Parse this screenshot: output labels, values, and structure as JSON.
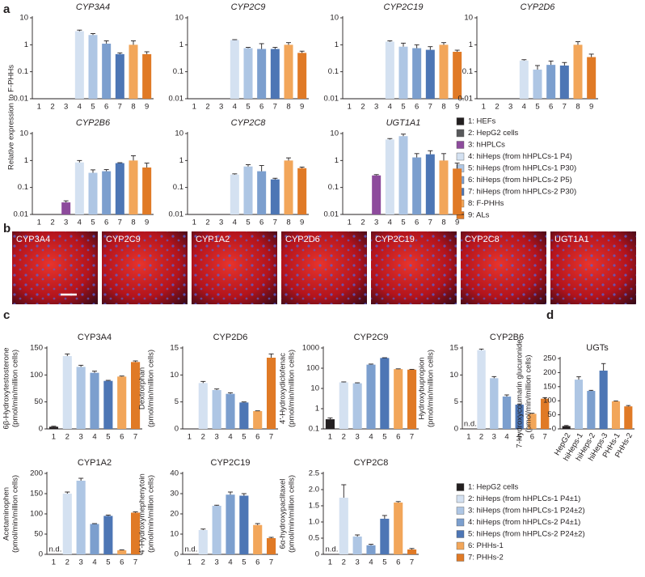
{
  "panel_labels": [
    "a",
    "b",
    "c",
    "d"
  ],
  "shared_ylabel": "Relative expression to F-PHHs",
  "images": [
    "CYP3A4",
    "CYP2C9",
    "CYP1A2",
    "CYP2D6",
    "CYP2C19",
    "CYP2C8",
    "UGT1A1"
  ],
  "legends": [
    {
      "entries": [
        {
          "label": "1: HEFs",
          "color": "#231f20"
        },
        {
          "label": "2: HepG2 cells",
          "color": "#58595b"
        },
        {
          "label": "3: hHPLCs",
          "color": "#8d4b9c"
        },
        {
          "label": "4: hiHeps (from hHPLCs-1 P4)",
          "color": "#d4e1f1"
        },
        {
          "label": "5: hiHeps (from hHPLCs-1 P30)",
          "color": "#aec6e4"
        },
        {
          "label": "6: hiHeps (from hHPLCs-2 P5)",
          "color": "#7c9fce"
        },
        {
          "label": "7: hiHeps (from hHPLCs-2 P30)",
          "color": "#4d76b5"
        },
        {
          "label": "8: F-PHHs",
          "color": "#f2a65a"
        },
        {
          "label": "9: ALs",
          "color": "#e07a26"
        }
      ]
    },
    {
      "entries": [
        {
          "label": "1: HepG2 cells",
          "color": "#231f20"
        },
        {
          "label": "2: hiHeps (from hHPLCs-1 P4±1)",
          "color": "#d4e1f1"
        },
        {
          "label": "3: hiHeps (from hHPLCs-1 P24±2)",
          "color": "#aec6e4"
        },
        {
          "label": "4: hiHeps (from hHPLCs-2 P4±1)",
          "color": "#7c9fce"
        },
        {
          "label": "5: hiHeps (from hHPLCs-2 P24±2)",
          "color": "#4d76b5"
        },
        {
          "label": "6: PHHs-1",
          "color": "#f2a65a"
        },
        {
          "label": "7: PHHs-2",
          "color": "#e07a26"
        }
      ]
    }
  ],
  "chart_data": [
    {
      "type": "bar",
      "title": "CYP3A4",
      "italic_title": true,
      "log_scale": true,
      "ylim": [
        0.01,
        10
      ],
      "yticks": [
        0.01,
        0.1,
        1,
        10
      ],
      "categories": [
        "1",
        "2",
        "3",
        "4",
        "5",
        "6",
        "7",
        "8",
        "9"
      ],
      "values": [
        null,
        null,
        null,
        3.2,
        2.3,
        1.1,
        0.45,
        1.0,
        0.45
      ],
      "errors": [
        null,
        null,
        null,
        0.3,
        0.3,
        0.3,
        0.05,
        0.4,
        0.1
      ],
      "colors": [
        "#231f20",
        "#58595b",
        "#8d4b9c",
        "#d4e1f1",
        "#aec6e4",
        "#7c9fce",
        "#4d76b5",
        "#f2a65a",
        "#e07a26"
      ]
    },
    {
      "type": "bar",
      "title": "CYP2C9",
      "italic_title": true,
      "log_scale": true,
      "ylim": [
        0.01,
        10
      ],
      "yticks": [
        0.01,
        0.1,
        1,
        10
      ],
      "categories": [
        "1",
        "2",
        "3",
        "4",
        "5",
        "6",
        "7",
        "8",
        "9"
      ],
      "values": [
        null,
        null,
        null,
        1.5,
        0.75,
        0.7,
        0.7,
        1.0,
        0.5
      ],
      "errors": [
        null,
        null,
        null,
        0.05,
        0.05,
        0.4,
        0.1,
        0.2,
        0.08
      ],
      "colors": [
        "#231f20",
        "#58595b",
        "#8d4b9c",
        "#d4e1f1",
        "#aec6e4",
        "#7c9fce",
        "#4d76b5",
        "#f2a65a",
        "#e07a26"
      ]
    },
    {
      "type": "bar",
      "title": "CYP2C19",
      "italic_title": true,
      "log_scale": true,
      "ylim": [
        0.01,
        10
      ],
      "yticks": [
        0.01,
        0.1,
        1,
        10
      ],
      "categories": [
        "1",
        "2",
        "3",
        "4",
        "5",
        "6",
        "7",
        "8",
        "9"
      ],
      "values": [
        null,
        null,
        null,
        1.3,
        0.85,
        0.75,
        0.65,
        1.0,
        0.55
      ],
      "errors": [
        null,
        null,
        null,
        0.1,
        0.3,
        0.25,
        0.2,
        0.2,
        0.08
      ],
      "colors": [
        "#231f20",
        "#58595b",
        "#8d4b9c",
        "#d4e1f1",
        "#aec6e4",
        "#7c9fce",
        "#4d76b5",
        "#f2a65a",
        "#e07a26"
      ]
    },
    {
      "type": "bar",
      "title": "CYP2D6",
      "italic_title": true,
      "log_scale": true,
      "ylim": [
        0.01,
        10
      ],
      "yticks": [
        0.01,
        0.1,
        1,
        10
      ],
      "categories": [
        "1",
        "2",
        "3",
        "4",
        "5",
        "6",
        "7",
        "8",
        "9"
      ],
      "values": [
        null,
        null,
        null,
        0.26,
        0.12,
        0.18,
        0.17,
        1.0,
        0.35
      ],
      "errors": [
        null,
        null,
        null,
        0.02,
        0.05,
        0.07,
        0.05,
        0.3,
        0.1
      ],
      "colors": [
        "#231f20",
        "#58595b",
        "#8d4b9c",
        "#d4e1f1",
        "#aec6e4",
        "#7c9fce",
        "#4d76b5",
        "#f2a65a",
        "#e07a26"
      ]
    },
    {
      "type": "bar",
      "title": "CYP2B6",
      "italic_title": true,
      "log_scale": true,
      "ylim": [
        0.01,
        10
      ],
      "yticks": [
        0.01,
        0.1,
        1,
        10
      ],
      "categories": [
        "1",
        "2",
        "3",
        "4",
        "5",
        "6",
        "7",
        "8",
        "9"
      ],
      "values": [
        null,
        null,
        0.028,
        0.85,
        0.35,
        0.4,
        0.8,
        1.0,
        0.55
      ],
      "errors": [
        null,
        null,
        0.004,
        0.15,
        0.1,
        0.06,
        0.03,
        0.5,
        0.25
      ],
      "colors": [
        "#231f20",
        "#58595b",
        "#8d4b9c",
        "#d4e1f1",
        "#aec6e4",
        "#7c9fce",
        "#4d76b5",
        "#f2a65a",
        "#e07a26"
      ]
    },
    {
      "type": "bar",
      "title": "CYP2C8",
      "italic_title": true,
      "log_scale": true,
      "ylim": [
        0.01,
        10
      ],
      "yticks": [
        0.01,
        0.1,
        1,
        10
      ],
      "categories": [
        "1",
        "2",
        "3",
        "4",
        "5",
        "6",
        "7",
        "8",
        "9"
      ],
      "values": [
        null,
        null,
        null,
        0.3,
        0.6,
        0.4,
        0.2,
        1.0,
        0.52
      ],
      "errors": [
        null,
        null,
        null,
        0.02,
        0.1,
        0.25,
        0.02,
        0.25,
        0.05
      ],
      "colors": [
        "#231f20",
        "#58595b",
        "#8d4b9c",
        "#d4e1f1",
        "#aec6e4",
        "#7c9fce",
        "#4d76b5",
        "#f2a65a",
        "#e07a26"
      ]
    },
    {
      "type": "bar",
      "title": "UGT1A1",
      "italic_title": true,
      "log_scale": true,
      "ylim": [
        0.01,
        10
      ],
      "yticks": [
        0.01,
        0.1,
        1,
        10
      ],
      "categories": [
        "1",
        "2",
        "3",
        "4",
        "5",
        "6",
        "7",
        "8",
        "9"
      ],
      "values": [
        null,
        null,
        0.28,
        6.0,
        8.0,
        1.3,
        1.7,
        1.0,
        0.5
      ],
      "errors": [
        null,
        null,
        0.02,
        0.5,
        1.5,
        0.5,
        0.6,
        0.8,
        0.3
      ],
      "colors": [
        "#231f20",
        "#58595b",
        "#8d4b9c",
        "#d4e1f1",
        "#aec6e4",
        "#7c9fce",
        "#4d76b5",
        "#f2a65a",
        "#e07a26"
      ]
    },
    {
      "type": "bar",
      "title": "CYP3A4",
      "ylabel": [
        "6β-Hydroxytestosterone",
        "(pmol/min/million cells)"
      ],
      "ylim": [
        0,
        150
      ],
      "yticks": [
        0,
        50,
        100,
        150
      ],
      "categories": [
        "1",
        "2",
        "3",
        "4",
        "5",
        "6",
        "7"
      ],
      "values": [
        4,
        135,
        115,
        104,
        89,
        97,
        124
      ],
      "errors": [
        1,
        4,
        3,
        3,
        1,
        1,
        2
      ],
      "colors": [
        "#231f20",
        "#d4e1f1",
        "#aec6e4",
        "#7c9fce",
        "#4d76b5",
        "#f2a65a",
        "#e07a26"
      ]
    },
    {
      "type": "bar",
      "title": "CYP2D6",
      "ylabel": [
        "Dextrorphan",
        "(pmol/min/million cells)"
      ],
      "ylim": [
        0,
        15
      ],
      "yticks": [
        0,
        5,
        10,
        15
      ],
      "categories": [
        "1",
        "2",
        "3",
        "4",
        "5",
        "6",
        "7"
      ],
      "values": [
        null,
        8.5,
        7.2,
        6.5,
        4.9,
        3.3,
        13.2
      ],
      "errors": [
        null,
        0.3,
        0.2,
        0.2,
        0.1,
        0.05,
        0.7
      ],
      "colors": [
        "#231f20",
        "#d4e1f1",
        "#aec6e4",
        "#7c9fce",
        "#4d76b5",
        "#f2a65a",
        "#e07a26"
      ]
    },
    {
      "type": "bar",
      "title": "CYP2C9",
      "ylabel": [
        "4'-Hydroxydiclofenac",
        "(pmol/min/million cells)"
      ],
      "log_scale": true,
      "ylim": [
        0.1,
        1000
      ],
      "yticks": [
        0.1,
        1,
        10,
        100,
        1000
      ],
      "categories": [
        "1",
        "2",
        "3",
        "4",
        "5",
        "6",
        "7"
      ],
      "values": [
        0.3,
        20,
        18,
        150,
        320,
        90,
        85
      ],
      "errors": [
        0.05,
        1,
        1,
        10,
        10,
        3,
        3
      ],
      "colors": [
        "#231f20",
        "#d4e1f1",
        "#aec6e4",
        "#7c9fce",
        "#4d76b5",
        "#f2a65a",
        "#e07a26"
      ]
    },
    {
      "type": "bar",
      "title": "CYP2B6",
      "ylabel": [
        "Hydroxybupropion",
        "(pmol/min/million cells)"
      ],
      "ylim": [
        0,
        15
      ],
      "yticks": [
        0,
        5,
        10,
        15
      ],
      "categories": [
        "1",
        "2",
        "3",
        "4",
        "5",
        "6",
        "7"
      ],
      "values": [
        null,
        14.6,
        9.4,
        6.0,
        4.5,
        2.8,
        5.6
      ],
      "value_labels": [
        "n.d.",
        null,
        null,
        null,
        null,
        null,
        null
      ],
      "errors": [
        null,
        0.2,
        0.3,
        0.3,
        0.1,
        0.1,
        0.2
      ],
      "colors": [
        "#231f20",
        "#d4e1f1",
        "#aec6e4",
        "#7c9fce",
        "#4d76b5",
        "#f2a65a",
        "#e07a26"
      ]
    },
    {
      "type": "bar",
      "title": "CYP1A2",
      "ylabel": [
        "Acetaminophen",
        "(pmol/min/million cells)"
      ],
      "ylim": [
        0,
        200
      ],
      "yticks": [
        0,
        50,
        100,
        150,
        200
      ],
      "categories": [
        "1",
        "2",
        "3",
        "4",
        "5",
        "6",
        "7"
      ],
      "values": [
        null,
        150,
        182,
        75,
        95,
        10,
        103
      ],
      "value_labels": [
        "n.d.",
        null,
        null,
        null,
        null,
        null,
        null
      ],
      "errors": [
        null,
        4,
        6,
        1,
        2,
        1,
        2
      ],
      "colors": [
        "#231f20",
        "#d4e1f1",
        "#aec6e4",
        "#7c9fce",
        "#4d76b5",
        "#f2a65a",
        "#e07a26"
      ]
    },
    {
      "type": "bar",
      "title": "CYP2C19",
      "ylabel": [
        "4'-Hydroxymephenytoin",
        "(pmol/min/million cells)"
      ],
      "ylim": [
        0,
        40
      ],
      "yticks": [
        0,
        10,
        20,
        30,
        40
      ],
      "categories": [
        "1",
        "2",
        "3",
        "4",
        "5",
        "6",
        "7"
      ],
      "values": [
        null,
        12,
        24,
        29.5,
        29,
        14.5,
        8
      ],
      "value_labels": [
        "n.d.",
        null,
        null,
        null,
        null,
        null,
        null
      ],
      "errors": [
        null,
        0.5,
        0.3,
        1.3,
        1,
        0.7,
        0.4
      ],
      "colors": [
        "#231f20",
        "#d4e1f1",
        "#aec6e4",
        "#7c9fce",
        "#4d76b5",
        "#f2a65a",
        "#e07a26"
      ]
    },
    {
      "type": "bar",
      "title": "CYP2C8",
      "ylabel": [
        "6α-hydroxypaclitaxel",
        "(pmol/min/million cells)"
      ],
      "ylim": [
        0,
        2.5
      ],
      "yticks": [
        0,
        0.5,
        {
          "value": 1,
          "label": "1.0"
        },
        1.5,
        {
          "value": 2,
          "label": "2.0"
        },
        2.5
      ],
      "categories": [
        "1",
        "2",
        "3",
        "4",
        "5",
        "6",
        "7"
      ],
      "values": [
        null,
        1.75,
        0.55,
        0.28,
        1.1,
        1.6,
        0.15
      ],
      "value_labels": [
        "n.d.",
        null,
        null,
        null,
        null,
        null,
        null
      ],
      "errors": [
        null,
        0.4,
        0.05,
        0.03,
        0.1,
        0.03,
        0.03
      ],
      "colors": [
        "#231f20",
        "#d4e1f1",
        "#aec6e4",
        "#7c9fce",
        "#4d76b5",
        "#f2a65a",
        "#e07a26"
      ]
    },
    {
      "type": "bar",
      "title": "UGTs",
      "ylabel": [
        "7-Hydroxycoumarin glucuronide",
        "(pmol/min/million cells)"
      ],
      "ylim": [
        0,
        250
      ],
      "yticks": [
        0,
        50,
        100,
        150,
        200,
        250
      ],
      "categories": [
        "HepG2",
        "hiHeps-1",
        "hiHeps-2",
        "hiHeps-3",
        "PHHs-1",
        "PHHs-2"
      ],
      "values": [
        10,
        175,
        135,
        207,
        98,
        80
      ],
      "errors": [
        2,
        10,
        2,
        25,
        1,
        3
      ],
      "colors": [
        "#231f20",
        "#aec6e4",
        "#7c9fce",
        "#4d76b5",
        "#f2a65a",
        "#e07a26"
      ]
    }
  ]
}
